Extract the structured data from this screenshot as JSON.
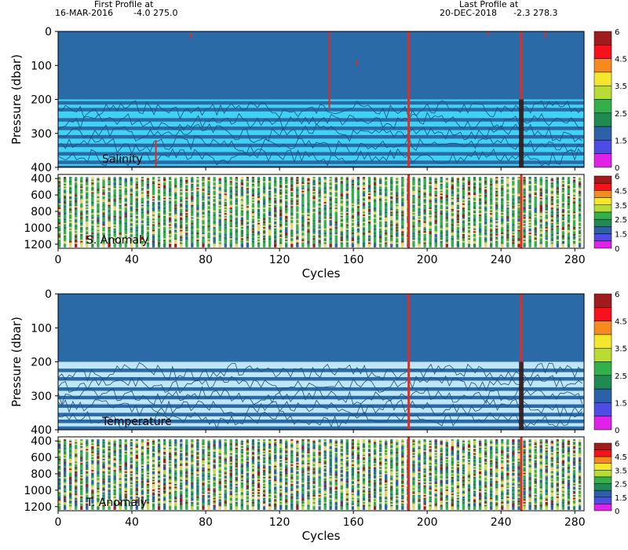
{
  "header": {
    "first_label": "First Profile at",
    "first_date": "16-MAR-2016",
    "first_coords": "-4.0 275.0",
    "last_label": "Last Profile at",
    "last_date": "20-DEC-2018",
    "last_coords": "-2.3 278.3"
  },
  "colors": {
    "deep_blue": "#2a6aa6",
    "cyan": "#3fd2f5",
    "light_blue": "#bfe6f7",
    "flag_red": "#e62a1e"
  },
  "colorbar": {
    "levels": [
      "6",
      "4.5",
      "3.5",
      "2.5",
      "1.5",
      "0"
    ],
    "colors": [
      "#a01c1c",
      "#f6111b",
      "#f58a1f",
      "#f5e62e",
      "#b8dc34",
      "#34b04a",
      "#1f8a52",
      "#2b62a7",
      "#4d4de6",
      "#e021e6"
    ]
  },
  "chart_data": [
    {
      "type": "heatmap",
      "name": "Salinity",
      "panel_label": "Salinity",
      "ylabel": "Pressure (dbar)",
      "ylim": [
        400,
        0
      ],
      "y_ticks": [
        "0",
        "100",
        "200",
        "300",
        "400"
      ],
      "xlim": [
        0,
        285
      ],
      "x_ticks": [
        "0",
        "40",
        "80",
        "120",
        "160",
        "200",
        "240",
        "280"
      ],
      "xlabel": "",
      "colorbar_ticks": [
        "6",
        "4.5",
        "3.5",
        "2.5",
        "1.5",
        "0"
      ]
    },
    {
      "type": "heatmap",
      "name": "S. Anomaly",
      "panel_label": "S. Anomaly",
      "ylabel": "",
      "ylim": [
        1250,
        350
      ],
      "y_ticks": [
        "400",
        "600",
        "800",
        "1000",
        "1200"
      ],
      "xlim": [
        0,
        285
      ],
      "x_ticks": [
        "0",
        "40",
        "80",
        "120",
        "160",
        "200",
        "240",
        "280"
      ],
      "xlabel": "Cycles",
      "colorbar_ticks": [
        "6",
        "4.5",
        "3.5",
        "2.5",
        "1.5",
        "0"
      ]
    },
    {
      "type": "heatmap",
      "name": "Temperature",
      "panel_label": "Temperature",
      "ylabel": "Pressure (dbar)",
      "ylim": [
        400,
        0
      ],
      "y_ticks": [
        "0",
        "100",
        "200",
        "300",
        "400"
      ],
      "xlim": [
        0,
        285
      ],
      "x_ticks": [
        "0",
        "40",
        "80",
        "120",
        "160",
        "200",
        "240",
        "280"
      ],
      "xlabel": "",
      "colorbar_ticks": [
        "6",
        "4.5",
        "3.5",
        "2.5",
        "1.5",
        "0"
      ]
    },
    {
      "type": "heatmap",
      "name": "T. Anomaly",
      "panel_label": "T. Anomaly",
      "ylabel": "",
      "ylim": [
        1250,
        350
      ],
      "y_ticks": [
        "400",
        "600",
        "800",
        "1000",
        "1200"
      ],
      "xlim": [
        0,
        285
      ],
      "x_ticks": [
        "0",
        "40",
        "80",
        "120",
        "160",
        "200",
        "240",
        "280"
      ],
      "xlabel": "Cycles",
      "colorbar_ticks": [
        "6",
        "4.5",
        "3.5",
        "2.5",
        "1.5",
        "0"
      ]
    }
  ],
  "flag_lines_cycles": [
    190,
    251
  ],
  "dark_column_cycle": 251
}
